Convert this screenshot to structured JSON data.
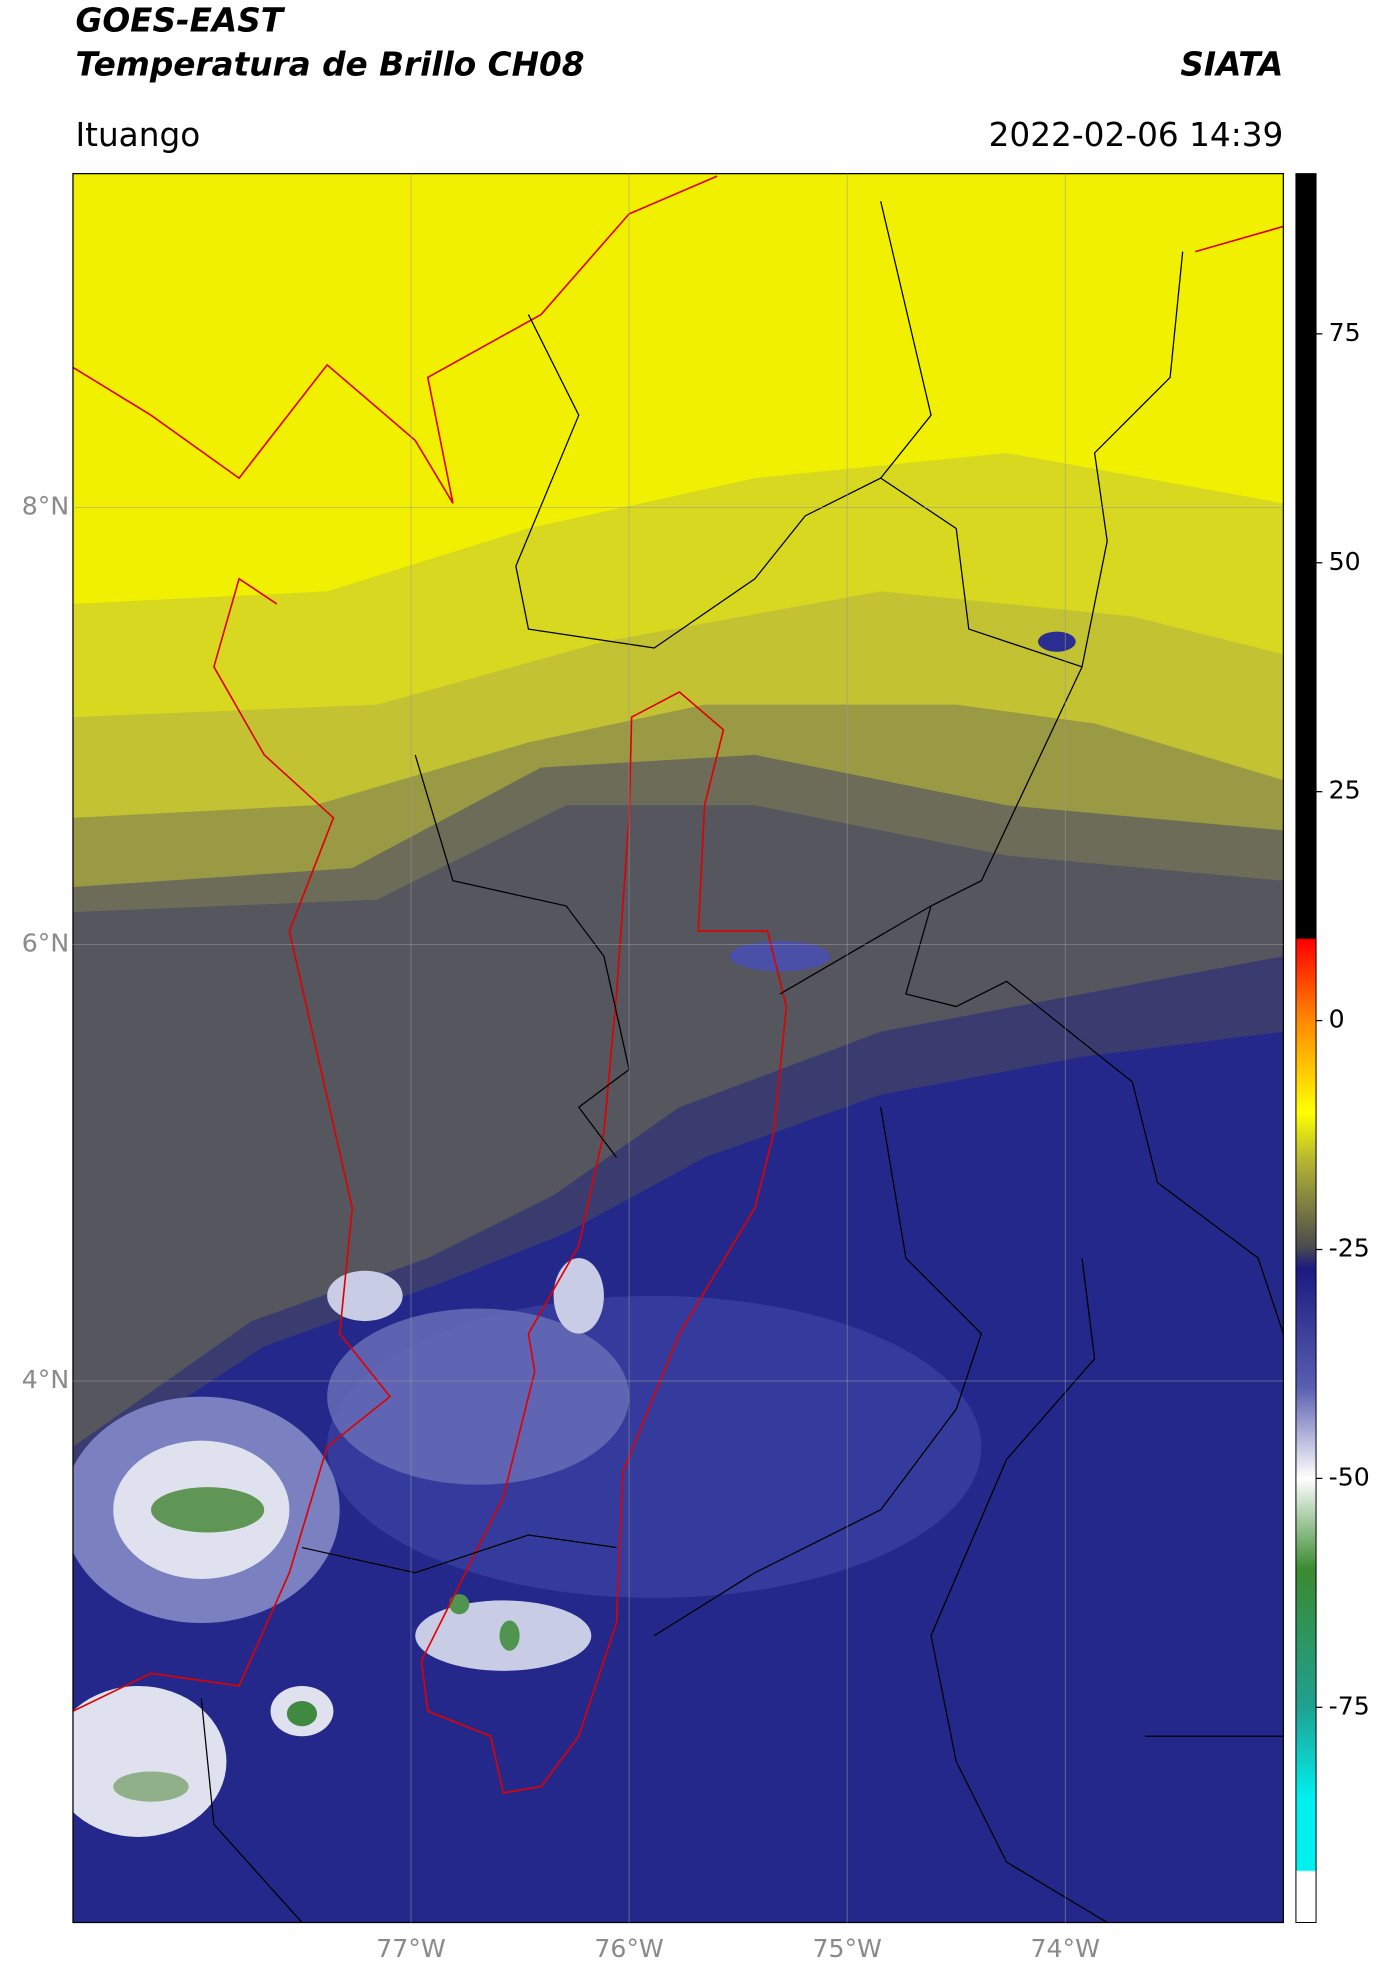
{
  "chart_data": {
    "type": "map",
    "title": "GOES-EAST",
    "subtitle": "Temperatura de Brillo CH08",
    "source": "SIATA",
    "region": "Ituango",
    "datetime": "2022-02-06 14:39",
    "xlim": [
      -78.55,
      -73.0
    ],
    "ylim": [
      1.52,
      9.53
    ],
    "xticks": [
      {
        "value": -77,
        "label": "77°W"
      },
      {
        "value": -76,
        "label": "76°W"
      },
      {
        "value": -75,
        "label": "75°W"
      },
      {
        "value": -74,
        "label": "74°W"
      }
    ],
    "yticks": [
      {
        "value": 4,
        "label": "4°N"
      },
      {
        "value": 6,
        "label": "6°N"
      },
      {
        "value": 8,
        "label": "8°N"
      }
    ],
    "grid": true,
    "colorbar": {
      "lim": [
        -98.5,
        92.5
      ],
      "ticks": [
        -75,
        -50,
        -25,
        0,
        25,
        50,
        75
      ]
    }
  }
}
